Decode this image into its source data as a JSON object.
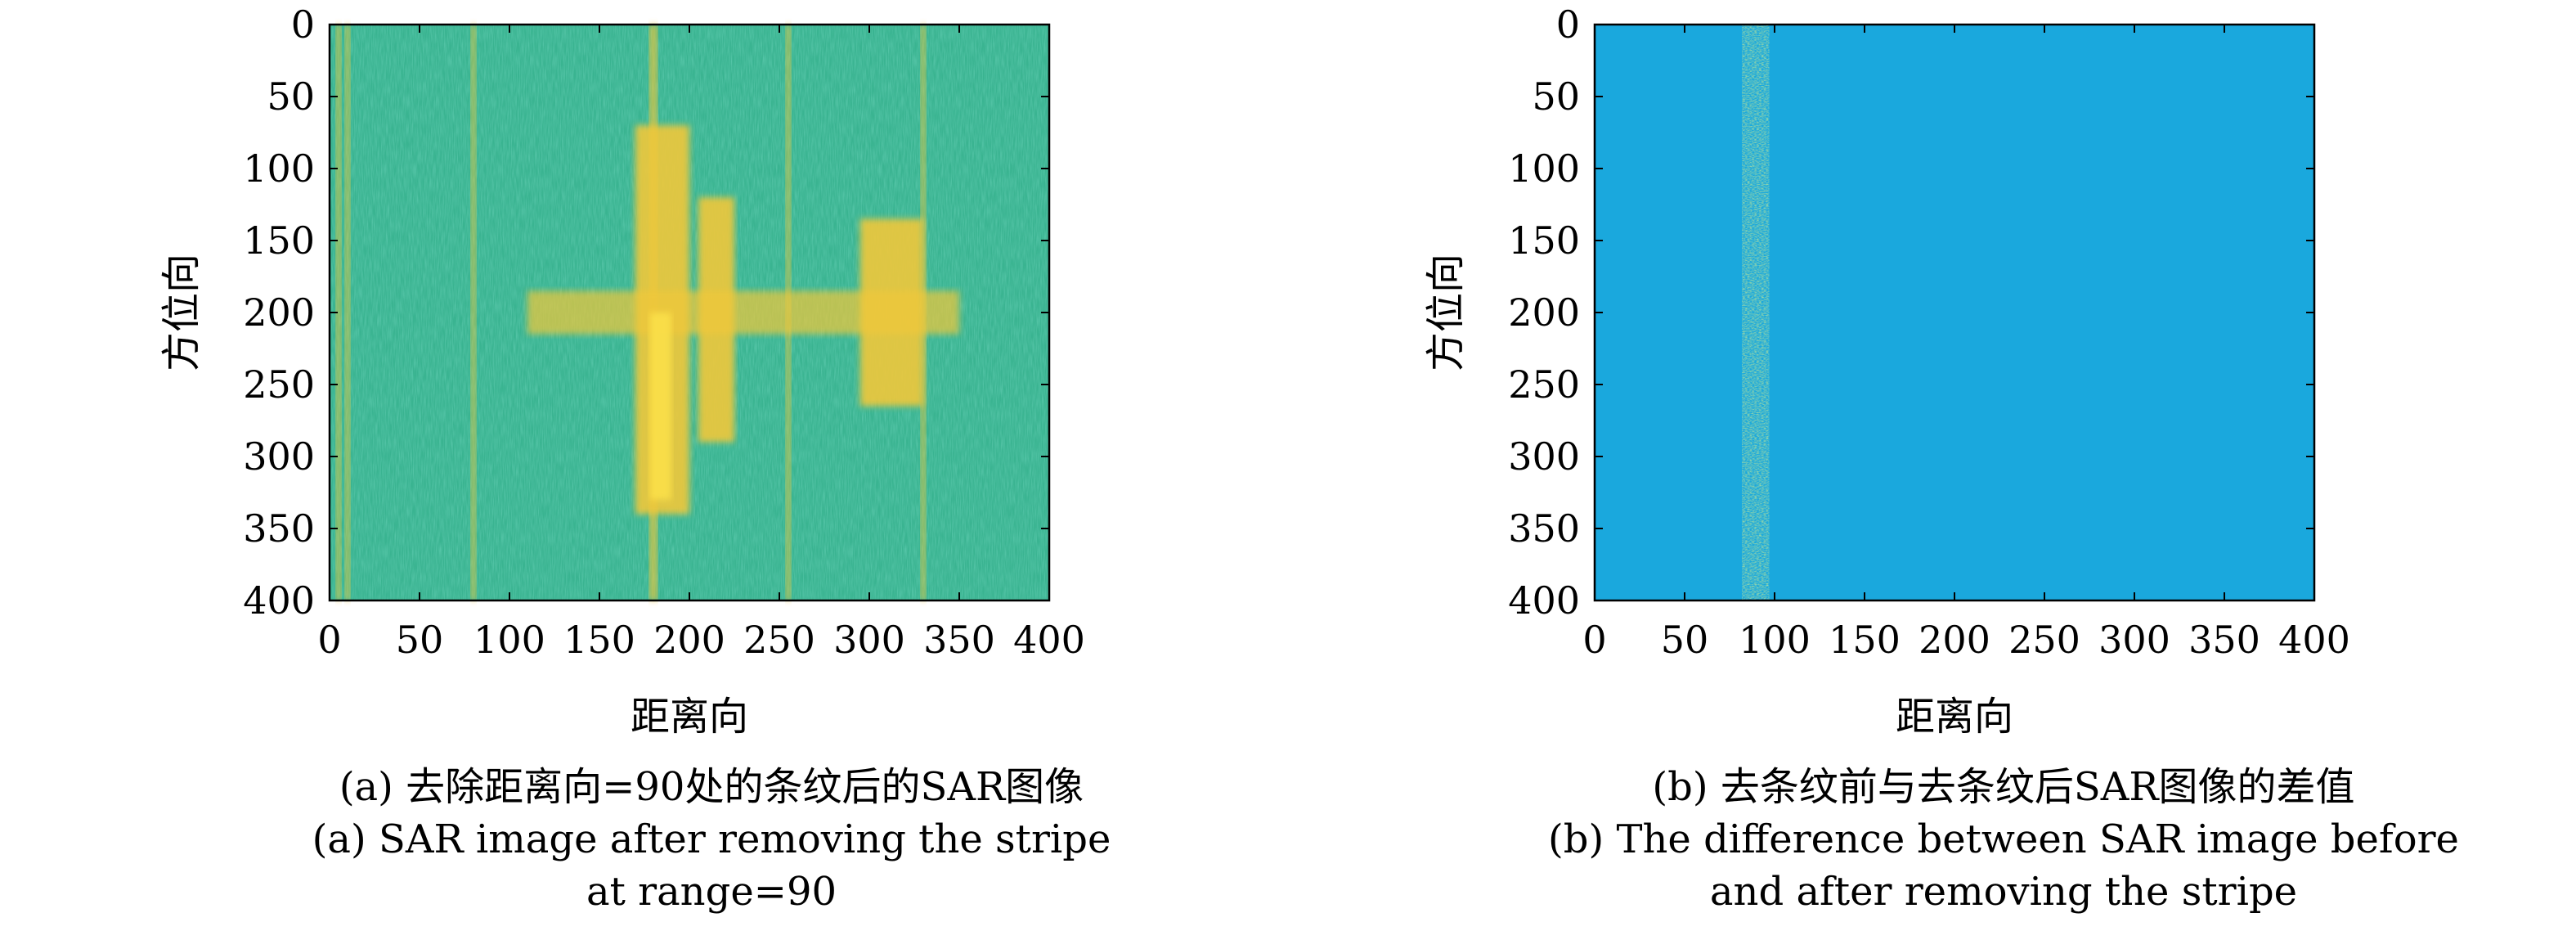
{
  "colors": {
    "background_low": "#1fa6d9",
    "mid": "#43b87a",
    "high": "#f0c83a",
    "peak": "#fbe04a",
    "diff_background": "#1aa8dd"
  },
  "chart_data": [
    {
      "type": "heatmap",
      "panel": "a",
      "xlabel": "距离向",
      "ylabel": "方位向",
      "xlim": [
        0,
        400
      ],
      "ylim": [
        400,
        0
      ],
      "xticks": [
        0,
        50,
        100,
        150,
        200,
        250,
        300,
        350,
        400
      ],
      "yticks": [
        0,
        50,
        100,
        150,
        200,
        250,
        300,
        350,
        400
      ],
      "xtick_labels": [
        "0",
        "50",
        "100",
        "150",
        "200",
        "250",
        "300",
        "350",
        "400"
      ],
      "ytick_labels": [
        "0",
        "50",
        "100",
        "150",
        "200",
        "250",
        "300",
        "350",
        "400"
      ],
      "description_values": {
        "vertical_stripes_range": [
          5,
          10,
          80,
          180,
          255,
          330
        ],
        "bright_targets": [
          {
            "range": [
              170,
              200
            ],
            "azimuth": [
              70,
              340
            ],
            "level": "high"
          },
          {
            "range": [
              205,
              225
            ],
            "azimuth": [
              120,
              290
            ],
            "level": "high"
          },
          {
            "range": [
              110,
              350
            ],
            "azimuth": [
              185,
              215
            ],
            "level": "medium"
          },
          {
            "range": [
              295,
              330
            ],
            "azimuth": [
              135,
              265
            ],
            "level": "high"
          }
        ]
      },
      "caption_zh": "(a) 去除距离向=90处的条纹后的SAR图像",
      "caption_en_1": "(a) SAR image after removing the stripe",
      "caption_en_2": "at range=90"
    },
    {
      "type": "heatmap",
      "panel": "b",
      "xlabel": "距离向",
      "ylabel": "方位向",
      "xlim": [
        0,
        400
      ],
      "ylim": [
        400,
        0
      ],
      "xticks": [
        0,
        50,
        100,
        150,
        200,
        250,
        300,
        350,
        400
      ],
      "yticks": [
        0,
        50,
        100,
        150,
        200,
        250,
        300,
        350,
        400
      ],
      "xtick_labels": [
        "0",
        "50",
        "100",
        "150",
        "200",
        "250",
        "300",
        "350",
        "400"
      ],
      "ytick_labels": [
        "0",
        "50",
        "100",
        "150",
        "200",
        "250",
        "300",
        "350",
        "400"
      ],
      "description_values": {
        "difference_stripe_range": [
          82,
          97
        ]
      },
      "caption_zh": "(b) 去条纹前与去条纹后SAR图像的差值",
      "caption_en_1": "(b) The difference between SAR image before",
      "caption_en_2": "and after removing the stripe"
    }
  ]
}
